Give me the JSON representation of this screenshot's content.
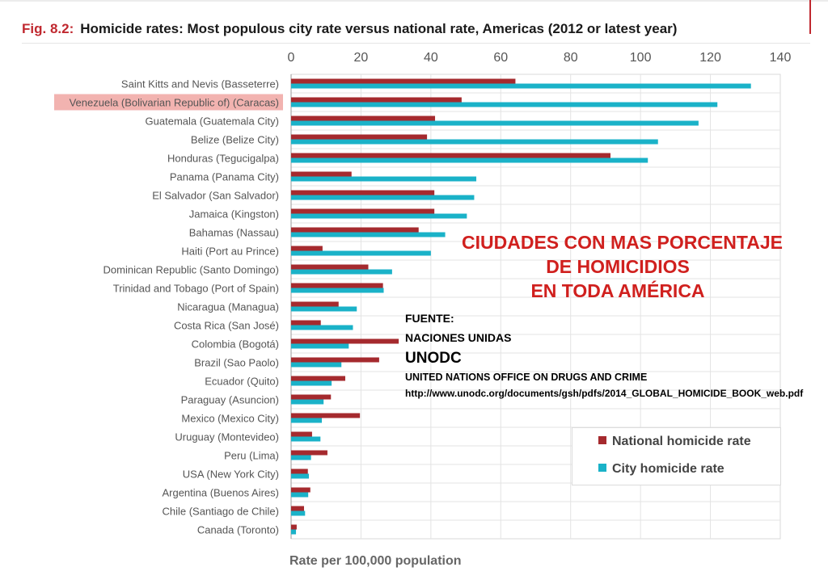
{
  "header": {
    "fig_number": "Fig. 8.2:",
    "fig_title": "Homicide rates: Most populous city rate versus national rate, Americas (2012 or latest year)"
  },
  "overlay": {
    "headline_line1": "CIUDADES CON MAS PORCENTAJE",
    "headline_line2": "DE HOMICIDIOS",
    "headline_line3": "EN TODA AMÉRICA",
    "source_label": "FUENTE:",
    "source_org": "NACIONES UNIDAS",
    "source_acronym": "UNODC",
    "source_full": "UNITED NATIONS OFFICE ON DRUGS AND CRIME",
    "source_url": "http://www.unodc.org/documents/gsh/pdfs/2014_GLOBAL_HOMICIDE_BOOK_web.pdf"
  },
  "colors": {
    "national": "#a52a2e",
    "city": "#1ab2c8",
    "highlight": "#f2b3b0",
    "fig_accent": "#c0282f",
    "overlay_red": "#d0201e"
  },
  "chart_data": {
    "type": "bar",
    "orientation": "horizontal",
    "xlabel": "Rate per 100,000 population",
    "xlim": [
      0,
      140
    ],
    "xticks": [
      0,
      20,
      40,
      60,
      80,
      100,
      120,
      140
    ],
    "tick_position": "top",
    "grid": true,
    "legend_position": "bottom-right",
    "highlighted_category": "Venezuela (Bolivarian Republic of) (Caracas)",
    "categories": [
      "Saint Kitts and Nevis (Basseterre)",
      "Venezuela (Bolivarian Republic of) (Caracas)",
      "Guatemala (Guatemala City)",
      "Belize (Belize City)",
      "Honduras (Tegucigalpa)",
      "Panama (Panama City)",
      "El Salvador (San Salvador)",
      "Jamaica (Kingston)",
      "Bahamas (Nassau)",
      "Haiti (Port au Prince)",
      "Dominican Republic (Santo Domingo)",
      "Trinidad and Tobago (Port of Spain)",
      "Nicaragua (Managua)",
      "Costa Rica (San José)",
      "Colombia (Bogotá)",
      "Brazil (Sao Paolo)",
      "Ecuador (Quito)",
      "Paraguay (Asuncion)",
      "Mexico (Mexico City)",
      "Uruguay (Montevideo)",
      "Peru (Lima)",
      "USA (New York City)",
      "Argentina (Buenos Aires)",
      "Chile (Santiago de Chile)",
      "Canada (Toronto)"
    ],
    "series": [
      {
        "name": "National homicide rate",
        "values": [
          64.2,
          48.8,
          41.2,
          38.9,
          91.4,
          17.3,
          41.0,
          41.0,
          36.5,
          9.0,
          22.1,
          26.3,
          13.6,
          8.5,
          30.8,
          25.2,
          15.5,
          11.4,
          19.7,
          6.0,
          10.4,
          4.8,
          5.5,
          3.7,
          1.6
        ]
      },
      {
        "name": "City homicide rate",
        "values": [
          131.6,
          122.0,
          116.6,
          105.0,
          102.1,
          53.0,
          52.4,
          50.3,
          44.1,
          40.0,
          28.9,
          26.5,
          18.8,
          17.7,
          16.5,
          14.4,
          11.6,
          9.3,
          8.8,
          8.4,
          5.7,
          5.1,
          4.9,
          4.0,
          1.4
        ]
      }
    ]
  }
}
